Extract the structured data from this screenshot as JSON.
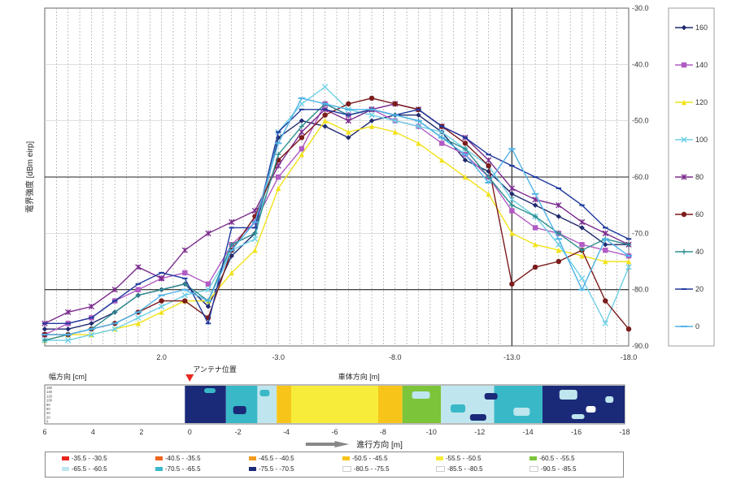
{
  "chart_data": [
    {
      "type": "line",
      "ylabel": "電界強度 [dBm eirp]",
      "ylim": [
        -90,
        -30
      ],
      "yticks": [
        "-30.0",
        "-40.0",
        "-50.0",
        "-60.0",
        "-70.0",
        "-80.0",
        "-90.0"
      ],
      "xlim": [
        7,
        -18
      ],
      "xticks": [
        "2.0",
        "-3.0",
        "-8.0",
        "-13.0",
        "-18.0"
      ],
      "major_gridlines_y": [
        -60,
        -80
      ],
      "major_gridlines_x": [
        -13
      ],
      "legend_position": "right",
      "series": [
        {
          "name": "160",
          "color": "#1f2a6e",
          "marker": "diamond"
        },
        {
          "name": "140",
          "color": "#b15bc3",
          "marker": "square"
        },
        {
          "name": "120",
          "color": "#f2e21a",
          "marker": "triangle"
        },
        {
          "name": "100",
          "color": "#6fd0e6",
          "marker": "x"
        },
        {
          "name": "80",
          "color": "#7a2b8c",
          "marker": "star"
        },
        {
          "name": "60",
          "color": "#7b1c1c",
          "marker": "circle"
        },
        {
          "name": "40",
          "color": "#2f8f8f",
          "marker": "plus"
        },
        {
          "name": "20",
          "color": "#1f3a9e",
          "marker": "dash"
        },
        {
          "name": "0",
          "color": "#4fb3e8",
          "marker": "bar"
        }
      ],
      "x": [
        7,
        6,
        5,
        4,
        3,
        2,
        1,
        0,
        -1,
        -2,
        -3,
        -4,
        -5,
        -6,
        -7,
        -8,
        -9,
        -10,
        -11,
        -12,
        -13,
        -14,
        -15,
        -16,
        -17,
        -18
      ],
      "values": {
        "160": [
          -87,
          -87,
          -86,
          -84,
          -81,
          -80,
          -79,
          -83,
          -74,
          -70,
          -53,
          -50,
          -51,
          -53,
          -50,
          -49,
          -49,
          -52,
          -57,
          -59,
          -63,
          -65,
          -67,
          -69,
          -72,
          -72
        ],
        "140": [
          -88,
          -86,
          -85,
          -82,
          -80,
          -78,
          -77,
          -79,
          -72,
          -68,
          -60,
          -55,
          -47,
          -49,
          -48,
          -50,
          -51,
          -54,
          -56,
          -60,
          -66,
          -69,
          -70,
          -72,
          -73,
          -74
        ],
        "120": [
          -89,
          -88,
          -88,
          -87,
          -86,
          -84,
          -82,
          -82,
          -77,
          -73,
          -62,
          -56,
          -50,
          -52,
          -51,
          -52,
          -54,
          -57,
          -60,
          -63,
          -70,
          -72,
          -73,
          -74,
          -75,
          -75
        ],
        "100": [
          -89,
          -89,
          -88,
          -87,
          -85,
          -83,
          -81,
          -80,
          -73,
          -71,
          -52,
          -47,
          -44,
          -48,
          -49,
          -50,
          -51,
          -52,
          -55,
          -58,
          -64,
          -67,
          -72,
          -78,
          -86,
          -76
        ],
        "80": [
          -86,
          -84,
          -83,
          -80,
          -76,
          -78,
          -73,
          -70,
          -68,
          -66,
          -58,
          -52,
          -48,
          -50,
          -48,
          -47,
          -48,
          -51,
          -53,
          -57,
          -62,
          -64,
          -65,
          -68,
          -70,
          -72
        ],
        "60": [
          -88,
          -88,
          -87,
          -86,
          -84,
          -82,
          -82,
          -85,
          -73,
          -67,
          -57,
          -53,
          -49,
          -47,
          -46,
          -47,
          -48,
          -51,
          -54,
          -58,
          -79,
          -76,
          -75,
          -73,
          -82,
          -87
        ],
        "40": [
          -89,
          -88,
          -87,
          -84,
          -81,
          -80,
          -79,
          -82,
          -72,
          -70,
          -56,
          -51,
          -47,
          -49,
          -48,
          -49,
          -50,
          -53,
          -55,
          -60,
          -65,
          -67,
          -70,
          -73,
          -71,
          -72
        ],
        "20": [
          -86,
          -86,
          -85,
          -82,
          -79,
          -77,
          -78,
          -86,
          -69,
          -69,
          -52,
          -48,
          -48,
          -49,
          -48,
          -49,
          -48,
          -51,
          -53,
          -56,
          -58,
          -60,
          -62,
          -65,
          -69,
          -71
        ],
        "0": [
          -88,
          -88,
          -87,
          -86,
          -84,
          -81,
          -80,
          -82,
          -73,
          -68,
          -54,
          -46,
          -47,
          -48,
          -48,
          -49,
          -50,
          -53,
          -56,
          -61,
          -55,
          -63,
          -71,
          -80,
          -71,
          -74
        ]
      }
    },
    {
      "type": "heatmap",
      "title_left": "幅方向 [cm]",
      "antenna_label": "アンテナ位置",
      "vehicle_label": "車体方向 [m]",
      "xlabel": "進行方向 [m]",
      "xlim": [
        6,
        -18
      ],
      "xticks": [
        "6",
        "4",
        "2",
        "0",
        "-2",
        "-4",
        "-6",
        "-8",
        "-10",
        "-12",
        "-14",
        "-16",
        "-18"
      ],
      "yticks": [
        "160",
        "140",
        "120",
        "100",
        "80",
        "60",
        "40",
        "20",
        "0"
      ],
      "levels": [
        {
          "range": "-35.5 - -30.5",
          "color": "#e8261f"
        },
        {
          "range": "-40.5 - -35.5",
          "color": "#f0641e"
        },
        {
          "range": "-45.5 - -40.5",
          "color": "#f29a1f"
        },
        {
          "range": "-50.5 - -45.5",
          "color": "#f7c51a"
        },
        {
          "range": "-55.5 - -50.5",
          "color": "#f7ec3a"
        },
        {
          "range": "-60.5 - -55.5",
          "color": "#7cc43a"
        },
        {
          "range": "-65.5 - -60.5",
          "color": "#bfe6ee"
        },
        {
          "range": "-70.5 - -65.5",
          "color": "#39b8c8"
        },
        {
          "range": "-75.5 - -70.5",
          "color": "#1b2a78"
        },
        {
          "range": "-80.5 - -75.5",
          "color": "#ffffff"
        },
        {
          "range": "-85.5 - -80.5",
          "color": "#ffffff"
        },
        {
          "range": "-90.5 - -85.5",
          "color": "#ffffff"
        }
      ]
    }
  ]
}
